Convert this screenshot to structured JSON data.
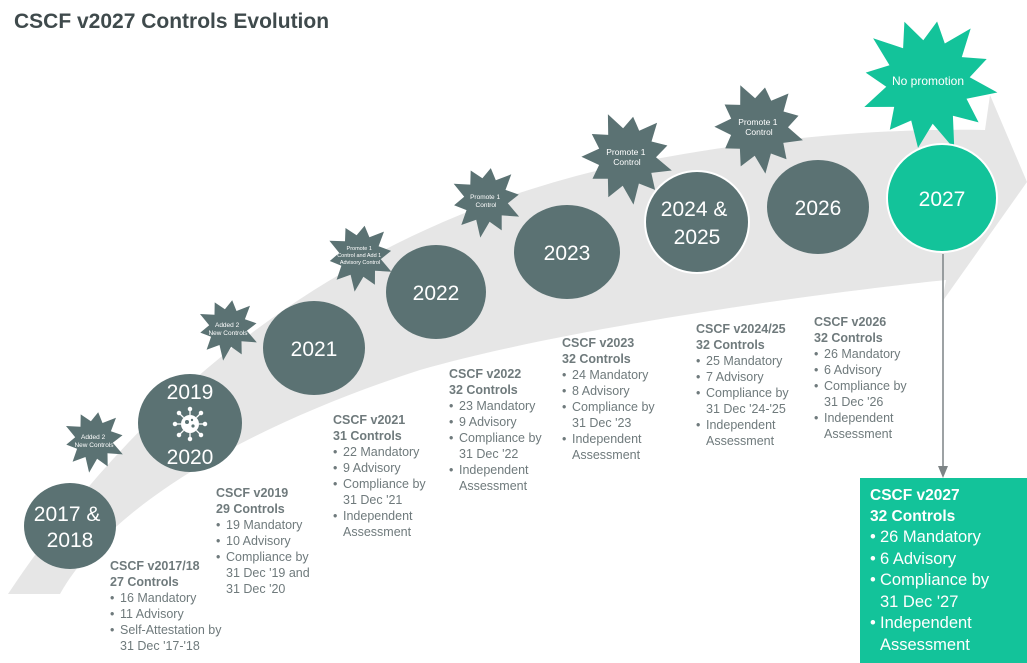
{
  "title": "CSCF v2027 Controls Evolution",
  "colors": {
    "circle": "#5b7273",
    "highlight": "#13c39a",
    "arrow": "#e6e6e6",
    "text": "#6f7a7c"
  },
  "milestones": [
    {
      "id": "2017",
      "line1": "2017 &",
      "line2": "2018"
    },
    {
      "id": "2019",
      "line1": "2019",
      "line2": "2020",
      "icon": "virus-icon"
    },
    {
      "id": "2021",
      "line1": "2021"
    },
    {
      "id": "2022",
      "line1": "2022"
    },
    {
      "id": "2023",
      "line1": "2023"
    },
    {
      "id": "2024",
      "line1": "2024 &",
      "line2": "2025"
    },
    {
      "id": "2026",
      "line1": "2026"
    },
    {
      "id": "2027",
      "line1": "2027"
    }
  ],
  "bursts": [
    {
      "id": "2017",
      "lines": [
        "Added 2",
        "New Controls"
      ]
    },
    {
      "id": "2019",
      "lines": [
        "Added 2",
        "New Controls"
      ]
    },
    {
      "id": "2021",
      "lines": [
        "Promote 1",
        "Control and Add 1",
        "Advisory Control"
      ]
    },
    {
      "id": "2022",
      "lines": [
        "Promote 1",
        "Control"
      ]
    },
    {
      "id": "2023",
      "lines": [
        "Promote 1",
        "Control"
      ]
    },
    {
      "id": "2024",
      "lines": [
        "Promote 1",
        "Control"
      ]
    },
    {
      "id": "2027",
      "lines": [
        "No promotion"
      ]
    }
  ],
  "blocks": {
    "v2017": {
      "h1": "CSCF v2017/18",
      "h2": "27 Controls",
      "b1": "16 Mandatory",
      "b2": "11 Advisory",
      "b3a": "Self-Attestation by",
      "b3b": "31 Dec '17-'18"
    },
    "v2019": {
      "h1": "CSCF v2019",
      "h2": "29 Controls",
      "b1": "19 Mandatory",
      "b2": "10 Advisory",
      "b3a": "Compliance by",
      "b3b": "31 Dec '19 and",
      "b3c": "31 Dec '20"
    },
    "v2021": {
      "h1": "CSCF v2021",
      "h2": "31 Controls",
      "b1": "22 Mandatory",
      "b2": "9 Advisory",
      "b3a": "Compliance by",
      "b3b": "31 Dec '21",
      "b4a": "Independent",
      "b4b": "Assessment"
    },
    "v2022": {
      "h1": "CSCF v2022",
      "h2": "32 Controls",
      "b1": "23 Mandatory",
      "b2": "9 Advisory",
      "b3a": "Compliance by",
      "b3b": "31 Dec '22",
      "b4a": "Independent",
      "b4b": "Assessment"
    },
    "v2023": {
      "h1": "CSCF v2023",
      "h2": "32 Controls",
      "b1": "24 Mandatory",
      "b2": "8 Advisory",
      "b3a": "Compliance by",
      "b3b": "31 Dec '23",
      "b4a": "Independent",
      "b4b": "Assessment"
    },
    "v2024": {
      "h1": "CSCF v2024/25",
      "h2": "32 Controls",
      "b1": "25 Mandatory",
      "b2": "7 Advisory",
      "b3a": "Compliance by",
      "b3b": "31 Dec '24-'25",
      "b4a": "Independent",
      "b4b": "Assessment"
    },
    "v2026": {
      "h1": "CSCF v2026",
      "h2": "32 Controls",
      "b1": "26 Mandatory",
      "b2": "6 Advisory",
      "b3a": "Compliance by",
      "b3b": "31 Dec '26",
      "b4a": "Independent",
      "b4b": "Assessment"
    },
    "v2027": {
      "h1": "CSCF v2027",
      "h2": "32 Controls",
      "b1": "26 Mandatory",
      "b2": "6 Advisory",
      "b3a": "Compliance by",
      "b3b": "31 Dec '27",
      "b4a": "Independent",
      "b4b": "Assessment"
    }
  }
}
